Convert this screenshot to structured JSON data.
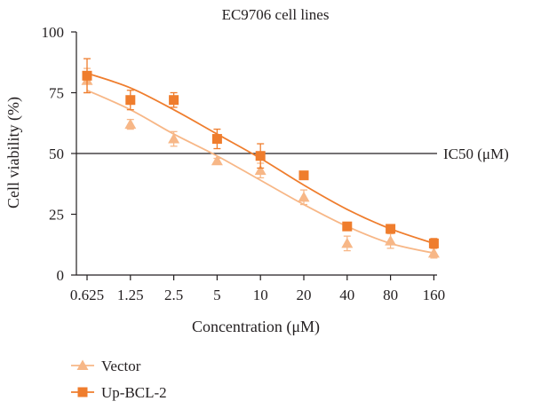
{
  "chart_data": {
    "type": "scatter",
    "title": "EC9706 cell lines",
    "xlabel": "Concentration (μM)",
    "ylabel": "Cell viability (%)",
    "x_scale": "log2",
    "xticks": [
      "0.625",
      "1.25",
      "2.5",
      "5",
      "10",
      "20",
      "40",
      "80",
      "160"
    ],
    "x_values": [
      0.625,
      1.25,
      2.5,
      5,
      10,
      20,
      40,
      80,
      160
    ],
    "ylim": [
      0,
      100
    ],
    "yticks": [
      0,
      25,
      50,
      75,
      100
    ],
    "reference_line": {
      "y": 50,
      "label": "IC50 (μM)"
    },
    "legend": "bottom-left",
    "series": [
      {
        "name": "Vector",
        "marker": "triangle",
        "color": "#f7b787",
        "values": [
          80,
          62,
          56,
          47,
          43,
          32,
          13,
          14,
          9
        ],
        "errors": [
          5,
          2,
          3,
          1,
          3,
          3,
          3,
          3,
          2
        ],
        "fit": [
          76,
          68,
          58,
          49,
          39,
          29,
          20,
          13,
          9
        ]
      },
      {
        "name": "Up-BCL-2",
        "marker": "square",
        "color": "#ef7d2d",
        "values": [
          82,
          72,
          72,
          56,
          49,
          41,
          20,
          19,
          13
        ],
        "errors": [
          7,
          4,
          3,
          4,
          5,
          1,
          1,
          1,
          2
        ],
        "fit": [
          83,
          77,
          68,
          58,
          48,
          37,
          27,
          19,
          13
        ]
      }
    ]
  }
}
